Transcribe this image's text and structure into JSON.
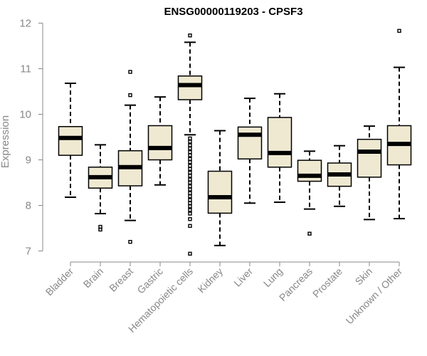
{
  "chart_data": {
    "type": "boxplot",
    "title": "ENSG00000119203 - CPSF3",
    "ylabel": "Expression",
    "xlabel": "",
    "ylim": [
      7,
      12
    ],
    "yticks": [
      7,
      8,
      9,
      10,
      11,
      12
    ],
    "grid": false,
    "categories": [
      "Bladder",
      "Brain",
      "Breast",
      "Gastric",
      "Hematopoietic cells",
      "Kidney",
      "Liver",
      "Lung",
      "Pancreas",
      "Prostate",
      "Skin",
      "Unknown / Other"
    ],
    "boxes": [
      {
        "whisker_low": 8.18,
        "q1": 9.1,
        "median": 9.48,
        "q3": 9.73,
        "whisker_high": 10.68,
        "outliers": []
      },
      {
        "whisker_low": 7.82,
        "q1": 8.38,
        "median": 8.62,
        "q3": 8.84,
        "whisker_high": 9.33,
        "outliers": [
          7.47,
          7.53
        ]
      },
      {
        "whisker_low": 7.67,
        "q1": 8.43,
        "median": 8.84,
        "q3": 9.2,
        "whisker_high": 10.2,
        "outliers": [
          7.2,
          10.42,
          10.93
        ]
      },
      {
        "whisker_low": 8.45,
        "q1": 9.0,
        "median": 9.26,
        "q3": 9.75,
        "whisker_high": 10.38,
        "outliers": []
      },
      {
        "whisker_low": 9.55,
        "q1": 10.32,
        "median": 10.64,
        "q3": 10.84,
        "whisker_high": 11.58,
        "outliers": [
          11.73,
          6.94,
          7.55,
          7.7,
          7.82,
          7.9,
          7.98,
          8.05,
          8.12,
          8.2,
          8.27,
          8.35,
          8.42,
          8.5,
          8.57,
          8.65,
          8.72,
          8.8,
          8.87,
          8.95,
          9.02,
          9.1,
          9.17,
          9.25,
          9.32,
          9.4,
          9.47
        ]
      },
      {
        "whisker_low": 7.12,
        "q1": 7.83,
        "median": 8.18,
        "q3": 8.75,
        "whisker_high": 9.64,
        "outliers": []
      },
      {
        "whisker_low": 8.05,
        "q1": 9.02,
        "median": 9.55,
        "q3": 9.72,
        "whisker_high": 10.35,
        "outliers": []
      },
      {
        "whisker_low": 8.07,
        "q1": 8.84,
        "median": 9.15,
        "q3": 9.93,
        "whisker_high": 10.45,
        "outliers": []
      },
      {
        "whisker_low": 7.92,
        "q1": 8.53,
        "median": 8.65,
        "q3": 8.99,
        "whisker_high": 9.19,
        "outliers": [
          7.38
        ]
      },
      {
        "whisker_low": 7.98,
        "q1": 8.42,
        "median": 8.68,
        "q3": 8.93,
        "whisker_high": 9.31,
        "outliers": []
      },
      {
        "whisker_low": 7.69,
        "q1": 8.62,
        "median": 9.18,
        "q3": 9.45,
        "whisker_high": 9.74,
        "outliers": []
      },
      {
        "whisker_low": 7.71,
        "q1": 8.89,
        "median": 9.35,
        "q3": 9.75,
        "whisker_high": 11.03,
        "outliers": [
          11.83
        ]
      }
    ]
  }
}
